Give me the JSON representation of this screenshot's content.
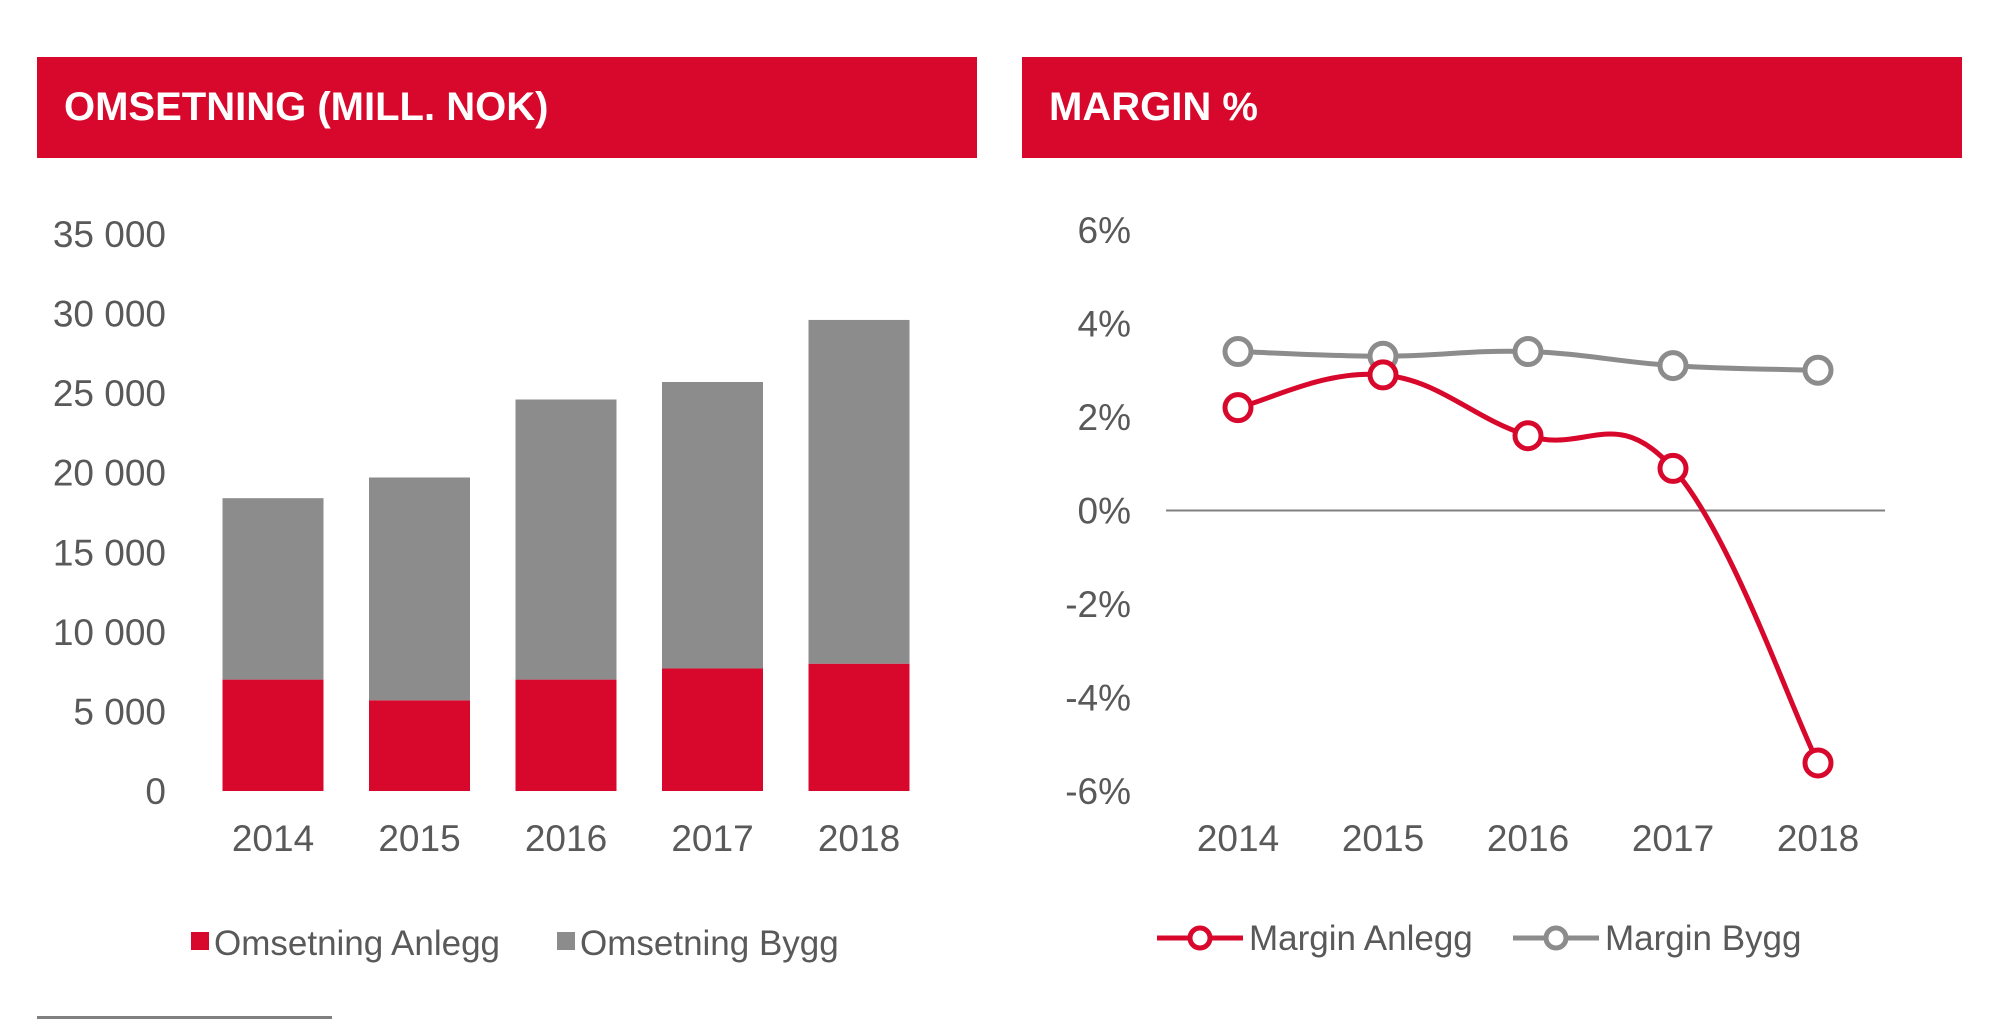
{
  "colors": {
    "anlegg": "#d7082c",
    "bygg": "#8c8c8c",
    "header_bg": "#d7082c",
    "zero_line": "#808080"
  },
  "chart_data": [
    {
      "type": "bar",
      "stacked": true,
      "title": "OMSETNING (MILL. NOK)",
      "categories": [
        "2014",
        "2015",
        "2016",
        "2017",
        "2018"
      ],
      "series": [
        {
          "name": "Omsetning Anlegg",
          "values": [
            7000,
            5700,
            7000,
            7700,
            8000
          ]
        },
        {
          "name": "Omsetning Bygg",
          "values": [
            11400,
            14000,
            17600,
            18000,
            21600
          ]
        }
      ],
      "ylim": [
        0,
        35000
      ],
      "yticks": [
        0,
        5000,
        10000,
        15000,
        20000,
        25000,
        30000,
        35000
      ],
      "ytick_labels": [
        "0",
        "5 000",
        "10 000",
        "15 000",
        "20 000",
        "25 000",
        "30 000",
        "35 000"
      ],
      "legend_position": "bottom",
      "grid": false
    },
    {
      "type": "line",
      "title": "MARGIN %",
      "categories": [
        "2014",
        "2015",
        "2016",
        "2017",
        "2018"
      ],
      "series": [
        {
          "name": "Margin Anlegg",
          "values": [
            2.2,
            2.9,
            1.6,
            0.9,
            -5.4
          ]
        },
        {
          "name": "Margin Bygg",
          "values": [
            3.4,
            3.3,
            3.4,
            3.1,
            3.0
          ]
        }
      ],
      "ylim": [
        -6,
        6
      ],
      "yticks": [
        -6,
        -4,
        -2,
        0,
        2,
        4,
        6
      ],
      "ytick_labels": [
        "-6%",
        "-4%",
        "-2%",
        "0%",
        "2%",
        "4%",
        "6%"
      ],
      "legend_position": "bottom",
      "grid": false
    }
  ]
}
